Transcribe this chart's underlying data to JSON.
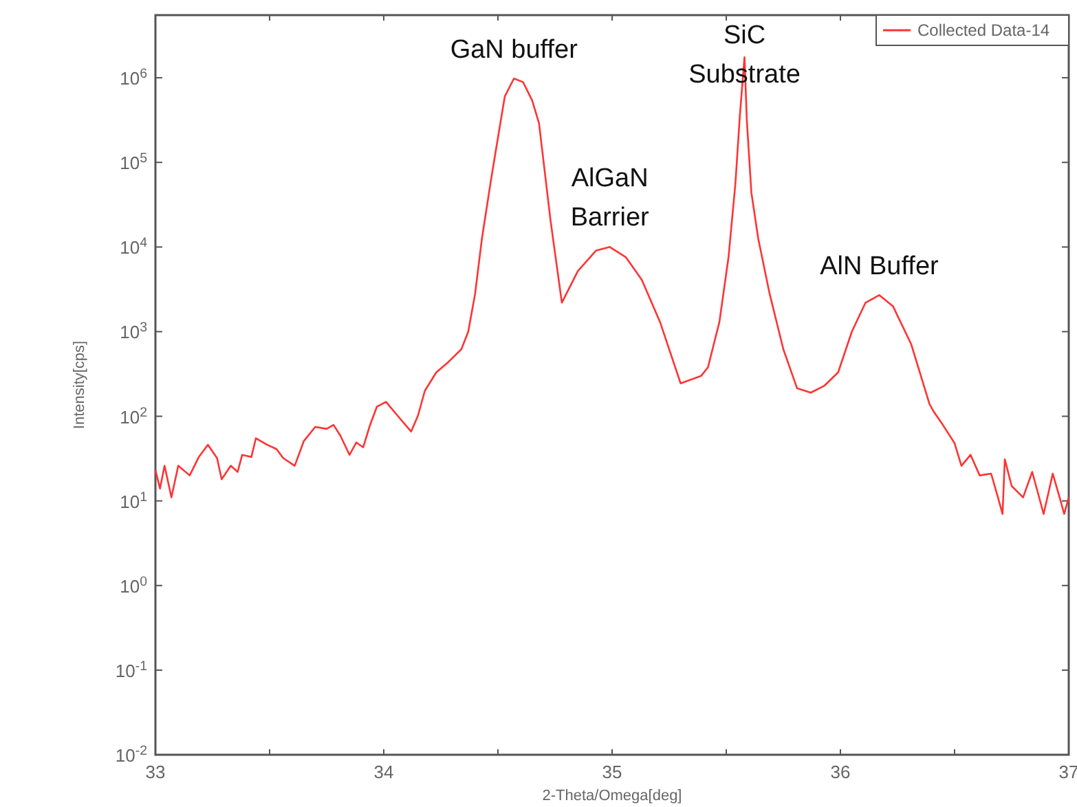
{
  "chart_data": {
    "type": "line",
    "xlabel": "2-Theta/Omega[deg]",
    "ylabel": "Intensity[cps]",
    "log": "y",
    "xlim": [
      33,
      37
    ],
    "ylim": [
      0.01,
      5500000
    ],
    "xticks": [
      33,
      {
        "value": 33.5,
        "label": null
      },
      34,
      {
        "value": 34.5,
        "label": null
      },
      35,
      {
        "value": 35.5,
        "label": null
      },
      36,
      {
        "value": 36.5,
        "label": null
      },
      37
    ],
    "yticks": [
      {
        "value": 0.01,
        "label": "10$^{-2}$"
      },
      {
        "value": 0.1,
        "label": "10$^{-1}$"
      },
      {
        "value": 1,
        "label": "10$^{0}$"
      },
      {
        "value": 10,
        "label": "10$^{1}$"
      },
      {
        "value": 100,
        "label": "10$^{2}$"
      },
      {
        "value": 1000,
        "label": "10$^{3}$"
      },
      {
        "value": 10000,
        "label": "10$^{4}$"
      },
      {
        "value": 100000,
        "label": "10$^{5}$"
      },
      {
        "value": 1000000,
        "label": "10$^{6}$"
      }
    ],
    "grid": false,
    "legend": "top right",
    "line_style": "solid",
    "x": [
      33.0,
      33.02,
      33.04,
      33.07,
      33.1,
      33.15,
      33.19,
      33.23,
      33.27,
      33.29,
      33.33,
      33.36,
      33.38,
      33.42,
      33.44,
      33.49,
      33.53,
      33.56,
      33.61,
      33.65,
      33.7,
      33.75,
      33.78,
      33.81,
      33.85,
      33.88,
      33.91,
      33.94,
      33.97,
      34.01,
      34.06,
      34.12,
      34.15,
      34.18,
      34.23,
      34.28,
      34.34,
      34.37,
      34.4,
      34.43,
      34.47,
      34.5,
      34.53,
      34.57,
      34.61,
      34.65,
      34.68,
      34.73,
      34.78,
      34.85,
      34.93,
      34.99,
      35.06,
      35.13,
      35.21,
      35.3,
      35.39,
      35.42,
      35.47,
      35.51,
      35.54,
      35.56,
      35.58,
      35.59,
      35.61,
      35.64,
      35.69,
      35.75,
      35.81,
      35.87,
      35.93,
      35.99,
      36.05,
      36.11,
      36.17,
      36.23,
      36.31,
      36.39,
      36.41,
      36.45,
      36.5,
      36.53,
      36.57,
      36.61,
      36.66,
      36.69,
      36.71,
      36.72,
      36.75,
      36.8,
      36.84,
      36.89,
      36.93,
      36.96,
      36.98,
      37.0
    ],
    "series": [
      {
        "name": "Collected Data-14",
        "color": "#ff3333",
        "values": [
          23,
          14,
          26,
          11,
          26,
          20,
          33,
          46,
          32,
          18,
          26,
          22,
          35,
          33,
          55,
          46,
          41,
          32,
          26,
          51,
          75,
          71,
          79,
          59,
          35,
          49,
          43,
          79,
          130,
          148,
          102,
          66,
          102,
          200,
          330,
          430,
          620,
          1000,
          2800,
          12600,
          63000,
          195000,
          600000,
          980000,
          890000,
          540000,
          290000,
          21000,
          2200,
          5200,
          9100,
          10000,
          7600,
          4100,
          1300,
          245,
          300,
          380,
          1300,
          7600,
          56000,
          370000,
          1750000,
          320000,
          44000,
          12600,
          2800,
          620,
          215,
          190,
          230,
          330,
          1000,
          2200,
          2700,
          2000,
          710,
          140,
          112,
          78,
          48,
          26,
          35,
          20,
          21,
          11,
          7,
          31,
          15,
          11,
          22,
          7,
          21,
          11,
          7,
          11
        ]
      }
    ],
    "annotations": [
      {
        "text": "GaN buffer",
        "x": 34.57,
        "y": 980000
      },
      {
        "text": "AlGaN\nBarrier",
        "x": 34.99,
        "y": 10000
      },
      {
        "text": "SiC\nSubstrate",
        "x": 35.58,
        "y": 1750000
      },
      {
        "text": "AlN Buffer",
        "x": 36.17,
        "y": 2700
      }
    ]
  }
}
